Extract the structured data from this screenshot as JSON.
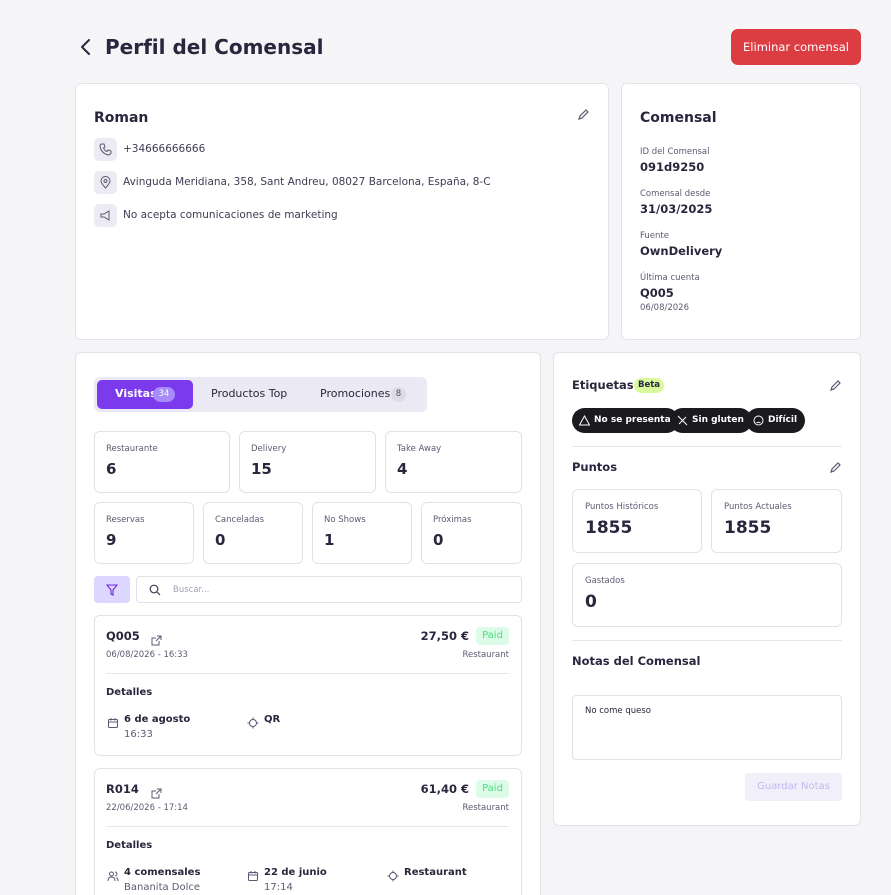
{
  "header": {
    "title": "Perfil del Comensal",
    "delete_button": "Eliminar comensal"
  },
  "profile": {
    "name": "Roman",
    "phone": "+34666666666",
    "address": "Avinguda Meridiana, 358, Sant Andreu, 08027 Barcelona, España, 8-C",
    "marketing": "No acepta comunicaciones de marketing"
  },
  "comensal": {
    "title": "Comensal",
    "fields": [
      {
        "label": "ID del Comensal",
        "value": "091d9250"
      },
      {
        "label": "Comensal desde",
        "value": "31/03/2025"
      },
      {
        "label": "Fuente",
        "value": "OwnDelivery"
      },
      {
        "label": "Última cuenta",
        "value": "Q005",
        "date": "06/08/2026"
      }
    ]
  },
  "tabs": [
    {
      "label": "Visitas",
      "count": 34
    },
    {
      "label": "Productos Top"
    },
    {
      "label": "Promociones",
      "count": 8
    }
  ],
  "stats": [
    [
      {
        "label": "Restaurante",
        "value": 6
      },
      {
        "label": "Delivery",
        "value": 15
      },
      {
        "label": "Take Away",
        "value": 4
      }
    ],
    [
      {
        "label": "Reservas",
        "value": 9
      },
      {
        "label": "Canceladas",
        "value": 0
      },
      {
        "label": "No Shows",
        "value": 1
      },
      {
        "label": "Próximas",
        "value": 0
      }
    ]
  ],
  "search_placeholder": "Buscar...",
  "visits": [
    {
      "code": "Q005",
      "datetime": "06/08/2026 - 16:33",
      "amount": "27,50 €",
      "status": "Paid",
      "channel": "Restaurant",
      "details_title": "Detalles",
      "details": [
        {
          "icon": "calendar",
          "text": "6 de agosto",
          "sub": "16:33"
        },
        {
          "icon": "target",
          "text": "QR"
        }
      ]
    },
    {
      "code": "R014",
      "datetime": "22/06/2026 - 17:14",
      "amount": "61,40 €",
      "status": "Paid",
      "channel": "Restaurant",
      "details_title": "Detalles",
      "details": [
        {
          "icon": "people",
          "text": "4 comensales",
          "sub": "Bananita Dolce"
        },
        {
          "icon": "calendar",
          "text": "22 de junio",
          "sub": "17:14"
        },
        {
          "icon": "target",
          "text": "Restaurant"
        }
      ]
    }
  ],
  "sidebar": {
    "tags_title": "Etiquetas",
    "beta": "Beta",
    "tags": [
      "No se presenta",
      "Sin gluten",
      "Difícil"
    ],
    "points_title": "Puntos",
    "points": [
      {
        "label": "Puntos Históricos",
        "value": 1855
      },
      {
        "label": "Puntos Actuales",
        "value": 1855
      },
      {
        "label": "Gastados",
        "value": 0
      }
    ],
    "notes_title": "Notas del Comensal",
    "notes": "No come queso",
    "save_button": "Guardar Notas"
  }
}
